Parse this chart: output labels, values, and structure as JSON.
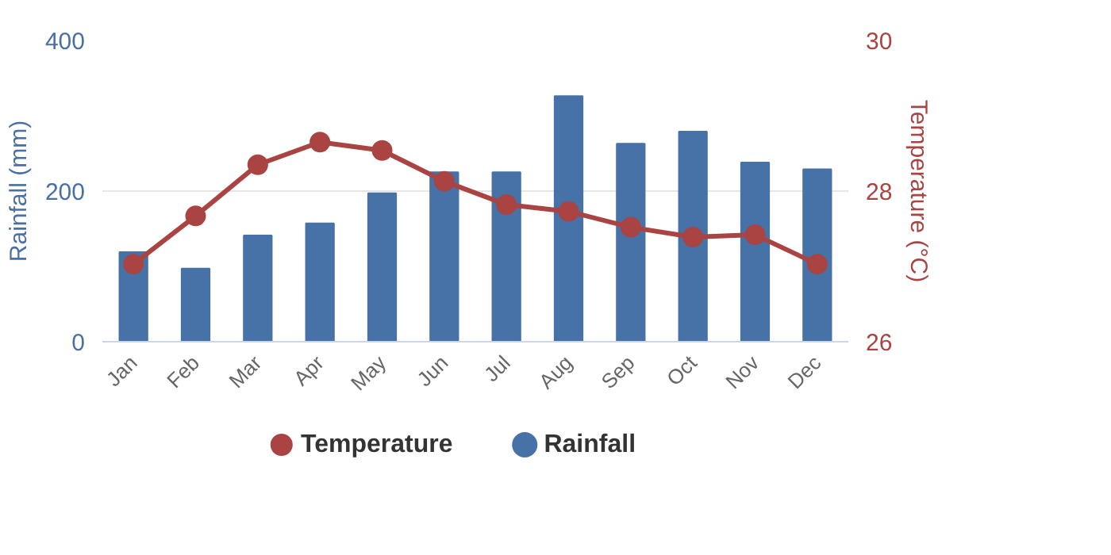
{
  "chart_data": {
    "type": "bar",
    "categories": [
      "Jan",
      "Feb",
      "Mar",
      "Apr",
      "May",
      "Jun",
      "Jul",
      "Aug",
      "Sep",
      "Oct",
      "Nov",
      "Dec"
    ],
    "series": [
      {
        "name": "Temperature",
        "type": "line",
        "axis": "y2",
        "color": "#a94442",
        "values": [
          27.03,
          27.67,
          28.35,
          28.65,
          28.54,
          28.13,
          27.82,
          27.73,
          27.52,
          27.39,
          27.42,
          27.03
        ]
      },
      {
        "name": "Rainfall",
        "color": "#4672a7",
        "values": [
          119,
          97,
          141,
          157,
          197,
          225,
          225,
          326,
          263,
          279,
          238,
          229
        ]
      }
    ],
    "ylabel": "Rainfall (mm)",
    "y2label": "Temperature (°C)",
    "ylim": [
      0,
      400
    ],
    "yticks": [
      0,
      200,
      400
    ],
    "y2lim": [
      26,
      30
    ],
    "y2ticks": [
      26,
      28,
      30
    ],
    "grid": "y",
    "legend": "bottom",
    "marker": "circle"
  }
}
